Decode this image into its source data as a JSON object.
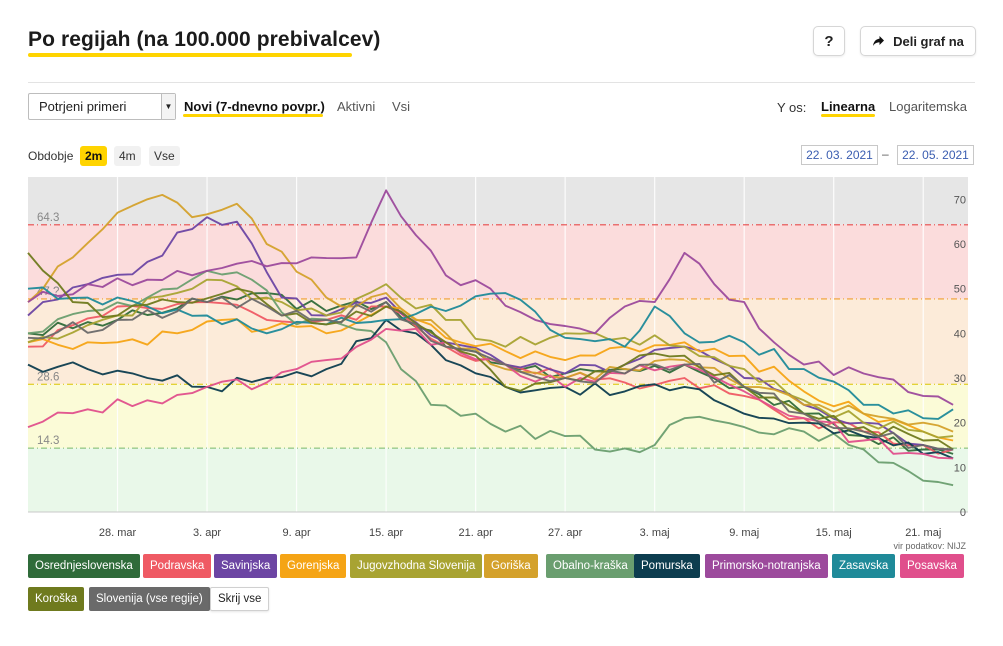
{
  "header": {
    "title": "Po regijah (na 100.000 prebivalcev)",
    "help_label": "?",
    "share_label": "Deli graf na"
  },
  "controls": {
    "select_value": "Potrjeni primeri",
    "modes": [
      {
        "label": "Novi (7-dnevno povpr.)",
        "active": true
      },
      {
        "label": "Aktivni",
        "active": false
      },
      {
        "label": "Vsi",
        "active": false
      }
    ],
    "y_axis_label": "Y os:",
    "y_modes": [
      {
        "label": "Linearna",
        "active": true
      },
      {
        "label": "Logaritemska",
        "active": false
      }
    ],
    "period_label": "Obdobje",
    "periods": [
      {
        "label": "2m",
        "active": true
      },
      {
        "label": "4m",
        "active": false
      },
      {
        "label": "Vse",
        "active": false
      }
    ],
    "date_from": "22. 03. 2021",
    "date_sep": "–",
    "date_to": "22. 05. 2021"
  },
  "source_note": "vir podatkov: NIJZ",
  "colors": {
    "accent": "#ffd400",
    "zone_gray": "#e6e6e6",
    "zone_red": "#fbdcdc",
    "zone_orange": "#fcebd9",
    "zone_yellow": "#fbfbd7",
    "zone_green": "#e9f8e9"
  },
  "chart_data": {
    "type": "line",
    "ylim": [
      0,
      75
    ],
    "ticks_y": [
      0,
      10,
      20,
      30,
      40,
      50,
      60,
      70
    ],
    "x_tick_labels": [
      "28. mar",
      "3. apr",
      "9. apr",
      "15. apr",
      "21. apr",
      "27. apr",
      "3. maj",
      "9. maj",
      "15. maj",
      "21. maj"
    ],
    "x_tick_index": [
      6,
      12,
      18,
      24,
      30,
      36,
      42,
      48,
      54,
      60
    ],
    "thresholds": [
      {
        "label": "64.3",
        "value": 64.3,
        "color": "#e84a4a"
      },
      {
        "label": "",
        "value": 47.7,
        "color": "#f0a030"
      },
      {
        "label": "28.6",
        "value": 28.6,
        "color": "#d9c400"
      },
      {
        "label": "14.3",
        "value": 14.3,
        "color": "#7ab86a"
      }
    ],
    "threshold_labels_visible": [
      "64.3",
      "47.?",
      "28.6",
      "14.3"
    ],
    "series": [
      {
        "name": "Osrednjeslovenska",
        "color": "#2f6b3a",
        "anchors": [
          [
            0,
            40
          ],
          [
            6,
            43
          ],
          [
            12,
            47
          ],
          [
            16,
            49
          ],
          [
            20,
            45
          ],
          [
            24,
            47
          ],
          [
            28,
            37
          ],
          [
            32,
            33
          ],
          [
            36,
            31
          ],
          [
            40,
            32
          ],
          [
            44,
            33
          ],
          [
            48,
            28
          ],
          [
            52,
            22
          ],
          [
            56,
            17
          ],
          [
            60,
            14
          ],
          [
            62,
            13
          ]
        ]
      },
      {
        "name": "Podravska",
        "color": "#ef5a64",
        "anchors": [
          [
            0,
            37
          ],
          [
            6,
            46
          ],
          [
            12,
            47
          ],
          [
            16,
            43
          ],
          [
            20,
            43
          ],
          [
            24,
            46
          ],
          [
            28,
            37
          ],
          [
            32,
            33
          ],
          [
            36,
            30
          ],
          [
            40,
            29
          ],
          [
            44,
            30
          ],
          [
            48,
            26
          ],
          [
            52,
            21
          ],
          [
            56,
            18
          ],
          [
            60,
            15
          ],
          [
            62,
            14
          ]
        ]
      },
      {
        "name": "Savinjska",
        "color": "#6c45a3",
        "anchors": [
          [
            0,
            44
          ],
          [
            4,
            51
          ],
          [
            8,
            56
          ],
          [
            12,
            66
          ],
          [
            14,
            65
          ],
          [
            17,
            48
          ],
          [
            20,
            44
          ],
          [
            24,
            48
          ],
          [
            28,
            38
          ],
          [
            32,
            33
          ],
          [
            36,
            31
          ],
          [
            40,
            33
          ],
          [
            44,
            37
          ],
          [
            48,
            30
          ],
          [
            52,
            24
          ],
          [
            56,
            20
          ],
          [
            60,
            15
          ],
          [
            62,
            14
          ]
        ]
      },
      {
        "name": "Gorenjska",
        "color": "#f5a415",
        "anchors": [
          [
            0,
            38
          ],
          [
            6,
            38
          ],
          [
            10,
            40
          ],
          [
            13,
            43
          ],
          [
            16,
            41
          ],
          [
            20,
            40
          ],
          [
            24,
            46
          ],
          [
            28,
            39
          ],
          [
            32,
            36
          ],
          [
            36,
            34
          ],
          [
            40,
            37
          ],
          [
            44,
            38
          ],
          [
            48,
            35
          ],
          [
            52,
            27
          ],
          [
            56,
            22
          ],
          [
            60,
            18
          ],
          [
            62,
            16
          ]
        ]
      },
      {
        "name": "Jugovzhodna Slovenija",
        "color": "#a8a332",
        "anchors": [
          [
            0,
            38
          ],
          [
            6,
            44
          ],
          [
            12,
            52
          ],
          [
            16,
            48
          ],
          [
            20,
            44
          ],
          [
            24,
            51
          ],
          [
            28,
            43
          ],
          [
            32,
            37
          ],
          [
            36,
            40
          ],
          [
            40,
            39
          ],
          [
            44,
            37
          ],
          [
            48,
            32
          ],
          [
            52,
            25
          ],
          [
            56,
            20
          ],
          [
            60,
            18
          ],
          [
            62,
            17
          ]
        ]
      },
      {
        "name": "Goriška",
        "color": "#d4a12b",
        "anchors": [
          [
            0,
            47
          ],
          [
            3,
            57
          ],
          [
            6,
            67
          ],
          [
            9,
            71
          ],
          [
            11,
            66
          ],
          [
            14,
            69
          ],
          [
            16,
            60
          ],
          [
            19,
            52
          ],
          [
            21,
            46
          ],
          [
            24,
            49
          ],
          [
            28,
            40
          ],
          [
            32,
            32
          ],
          [
            36,
            30
          ],
          [
            40,
            32
          ],
          [
            44,
            34
          ],
          [
            48,
            28
          ],
          [
            52,
            24
          ],
          [
            56,
            22
          ],
          [
            60,
            20
          ],
          [
            62,
            18
          ]
        ]
      },
      {
        "name": "Obalno-kraška",
        "color": "#6a9e6f",
        "anchors": [
          [
            0,
            40
          ],
          [
            4,
            45
          ],
          [
            8,
            48
          ],
          [
            12,
            54
          ],
          [
            15,
            52
          ],
          [
            18,
            42
          ],
          [
            21,
            42
          ],
          [
            24,
            38
          ],
          [
            25,
            32
          ],
          [
            27,
            24
          ],
          [
            30,
            22
          ],
          [
            32,
            18
          ],
          [
            36,
            17
          ],
          [
            38,
            14
          ],
          [
            42,
            15
          ],
          [
            44,
            21
          ],
          [
            48,
            19
          ],
          [
            52,
            18
          ],
          [
            56,
            14
          ],
          [
            58,
            11
          ],
          [
            60,
            7
          ],
          [
            62,
            6
          ]
        ]
      },
      {
        "name": "Pomurska",
        "color": "#0d3d4f",
        "anchors": [
          [
            0,
            33
          ],
          [
            4,
            32
          ],
          [
            8,
            30
          ],
          [
            12,
            28
          ],
          [
            16,
            30
          ],
          [
            20,
            32
          ],
          [
            24,
            43
          ],
          [
            26,
            40
          ],
          [
            28,
            34
          ],
          [
            32,
            28
          ],
          [
            36,
            28
          ],
          [
            40,
            27
          ],
          [
            44,
            28
          ],
          [
            46,
            25
          ],
          [
            48,
            22
          ],
          [
            52,
            20
          ],
          [
            56,
            17
          ],
          [
            60,
            13
          ],
          [
            62,
            12
          ]
        ]
      },
      {
        "name": "Primorsko-notranjska",
        "color": "#9c4a9c",
        "anchors": [
          [
            0,
            47
          ],
          [
            4,
            51
          ],
          [
            8,
            52
          ],
          [
            12,
            54
          ],
          [
            16,
            55
          ],
          [
            19,
            57
          ],
          [
            22,
            57
          ],
          [
            24,
            72
          ],
          [
            26,
            62
          ],
          [
            28,
            53
          ],
          [
            31,
            50
          ],
          [
            34,
            43
          ],
          [
            38,
            40
          ],
          [
            40,
            46
          ],
          [
            42,
            47
          ],
          [
            44,
            58
          ],
          [
            46,
            51
          ],
          [
            48,
            47
          ],
          [
            50,
            38
          ],
          [
            52,
            33
          ],
          [
            56,
            31
          ],
          [
            60,
            26
          ],
          [
            62,
            24
          ]
        ]
      },
      {
        "name": "Zasavska",
        "color": "#1f8a99",
        "anchors": [
          [
            0,
            50
          ],
          [
            4,
            48
          ],
          [
            8,
            46
          ],
          [
            12,
            44
          ],
          [
            16,
            40
          ],
          [
            20,
            42
          ],
          [
            24,
            43
          ],
          [
            28,
            45
          ],
          [
            32,
            49
          ],
          [
            36,
            39
          ],
          [
            40,
            37
          ],
          [
            42,
            46
          ],
          [
            44,
            40
          ],
          [
            48,
            38
          ],
          [
            52,
            32
          ],
          [
            56,
            24
          ],
          [
            60,
            21
          ],
          [
            62,
            23
          ]
        ]
      },
      {
        "name": "Posavska",
        "color": "#e04f8c",
        "anchors": [
          [
            0,
            19
          ],
          [
            4,
            23
          ],
          [
            8,
            25
          ],
          [
            12,
            28
          ],
          [
            16,
            29
          ],
          [
            18,
            32
          ],
          [
            20,
            34
          ],
          [
            24,
            41
          ],
          [
            28,
            38
          ],
          [
            32,
            33
          ],
          [
            36,
            28
          ],
          [
            40,
            31
          ],
          [
            44,
            33
          ],
          [
            48,
            27
          ],
          [
            52,
            21
          ],
          [
            56,
            16
          ],
          [
            60,
            13
          ],
          [
            62,
            12
          ]
        ]
      },
      {
        "name": "Koroška",
        "color": "#6f7a1e",
        "anchors": [
          [
            0,
            58
          ],
          [
            3,
            47
          ],
          [
            6,
            44
          ],
          [
            10,
            47
          ],
          [
            14,
            50
          ],
          [
            17,
            44
          ],
          [
            20,
            42
          ],
          [
            24,
            46
          ],
          [
            28,
            38
          ],
          [
            30,
            35
          ],
          [
            32,
            28
          ],
          [
            36,
            30
          ],
          [
            40,
            33
          ],
          [
            44,
            35
          ],
          [
            48,
            28
          ],
          [
            52,
            22
          ],
          [
            56,
            19
          ],
          [
            60,
            16
          ],
          [
            62,
            14
          ]
        ]
      },
      {
        "name": "Slovenija (vse regije)",
        "color": "#6a6a6a",
        "anchors": [
          [
            0,
            39
          ],
          [
            6,
            43
          ],
          [
            12,
            47
          ],
          [
            16,
            46
          ],
          [
            20,
            43
          ],
          [
            24,
            47
          ],
          [
            28,
            37
          ],
          [
            32,
            33
          ],
          [
            36,
            30
          ],
          [
            40,
            31
          ],
          [
            44,
            33
          ],
          [
            48,
            28
          ],
          [
            52,
            22
          ],
          [
            56,
            18
          ],
          [
            60,
            15
          ],
          [
            62,
            14
          ]
        ]
      }
    ]
  },
  "legend": {
    "hide_label": "Skrij vse",
    "items": [
      {
        "name": "Osrednjeslovenska",
        "color": "#2f6b3a"
      },
      {
        "name": "Podravska",
        "color": "#ef5a64"
      },
      {
        "name": "Savinjska",
        "color": "#6c45a3"
      },
      {
        "name": "Gorenjska",
        "color": "#f5a415"
      },
      {
        "name": "Jugovzhodna Slovenija",
        "color": "#a8a332"
      },
      {
        "name": "Goriška",
        "color": "#d4a12b"
      },
      {
        "name": "Obalno-kraška",
        "color": "#6a9e6f"
      },
      {
        "name": "Pomurska",
        "color": "#0d3d4f"
      },
      {
        "name": "Primorsko-notranjska",
        "color": "#9c4a9c"
      },
      {
        "name": "Zasavska",
        "color": "#1f8a99"
      },
      {
        "name": "Posavska",
        "color": "#e04f8c"
      },
      {
        "name": "Koroška",
        "color": "#6f7a1e"
      },
      {
        "name": "Slovenija (vse regije)",
        "color": "#6a6a6a"
      }
    ]
  }
}
